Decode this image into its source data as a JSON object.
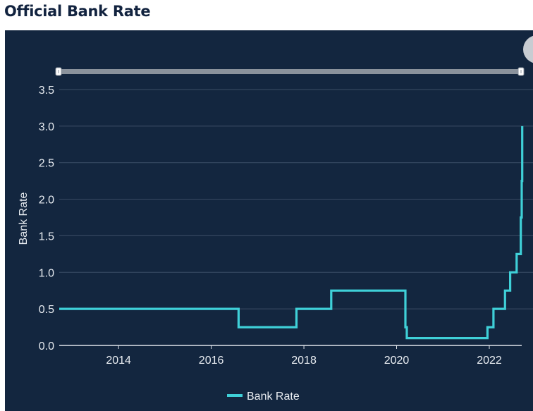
{
  "page": {
    "title": "Official Bank Rate"
  },
  "colors": {
    "background": "#13263f",
    "series": "#3fd0d8",
    "grid": "#3b4d66",
    "axis": "#dfe4ea",
    "text": "#e8ecf1",
    "range_bar": "#8a929c",
    "handle": "#ffffff"
  },
  "chart_data": {
    "type": "line",
    "title": "Official Bank Rate",
    "xlabel": "",
    "ylabel": "Bank Rate",
    "xlim": [
      2012.72,
      2022.7
    ],
    "ylim": [
      0,
      3.5
    ],
    "yticks": [
      0,
      0.5,
      1,
      1.5,
      2,
      2.5,
      3,
      3.5
    ],
    "ytick_labels": [
      "0.0",
      "0.5",
      "1.0",
      "1.5",
      "2.0",
      "2.5",
      "3.0",
      "3.5"
    ],
    "xticks": [
      2014,
      2016,
      2018,
      2020,
      2022
    ],
    "xtick_labels": [
      "2014",
      "2016",
      "2018",
      "2020",
      "2022"
    ],
    "grid": true,
    "legend": "bottom-center",
    "step": "post",
    "series": [
      {
        "name": "Bank Rate",
        "x": [
          2012.72,
          2016.59,
          2017.84,
          2018.59,
          2020.19,
          2020.22,
          2021.96,
          2022.09,
          2022.34,
          2022.45,
          2022.59,
          2022.68,
          2022.7
        ],
        "values": [
          0.5,
          0.25,
          0.5,
          0.75,
          0.25,
          0.1,
          0.25,
          0.5,
          0.75,
          1.0,
          1.25,
          1.75,
          2.25
        ]
      }
    ],
    "extra_steps": [
      {
        "x": 2022.71,
        "value": 3.0
      }
    ]
  }
}
